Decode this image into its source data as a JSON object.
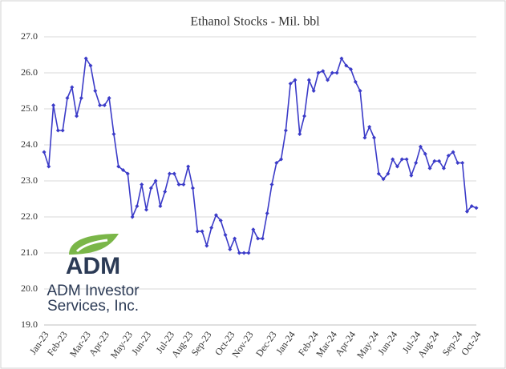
{
  "chart_data": {
    "type": "line",
    "title": "Ethanol Stocks - Mil. bbl",
    "categories": [
      "Jan-23",
      null,
      null,
      null,
      "Feb-23",
      null,
      null,
      null,
      null,
      "Mar-23",
      null,
      null,
      null,
      "Apr-23",
      null,
      null,
      null,
      null,
      "May-23",
      null,
      null,
      null,
      "Jun-23",
      null,
      null,
      null,
      null,
      "Jul-23",
      null,
      null,
      null,
      "Aug-23",
      null,
      null,
      null,
      "Sep-23",
      null,
      null,
      null,
      null,
      "Oct-23",
      null,
      null,
      null,
      "Nov-23",
      null,
      null,
      null,
      null,
      "Dec-23",
      null,
      null,
      null,
      "Jan-24",
      null,
      null,
      null,
      null,
      "Feb-24",
      null,
      null,
      null,
      "Mar-24",
      null,
      null,
      null,
      "Apr-24",
      null,
      null,
      null,
      null,
      "May-24",
      null,
      null,
      null,
      "Jun-24",
      null,
      null,
      null,
      null,
      "Jul-24",
      null,
      null,
      null,
      "Aug-24",
      null,
      null,
      null,
      null,
      "Sep-24",
      null,
      null,
      null,
      "Oct-24"
    ],
    "series": [
      {
        "name": "Ethanol Stocks",
        "color": "#3b3bc8",
        "values": [
          23.8,
          23.4,
          25.1,
          24.4,
          24.4,
          25.3,
          25.6,
          24.8,
          25.3,
          26.4,
          26.2,
          25.5,
          25.1,
          25.1,
          25.3,
          24.3,
          23.4,
          23.3,
          23.2,
          22.0,
          22.3,
          22.9,
          22.2,
          22.8,
          23.0,
          22.3,
          22.7,
          23.2,
          23.2,
          22.9,
          22.9,
          23.4,
          22.8,
          21.6,
          21.6,
          21.2,
          21.7,
          22.05,
          21.9,
          21.5,
          21.1,
          21.4,
          21.0,
          21.0,
          21.0,
          21.65,
          21.4,
          21.4,
          22.1,
          22.9,
          23.5,
          23.6,
          24.4,
          25.7,
          25.8,
          24.3,
          24.8,
          25.8,
          25.5,
          26.0,
          26.05,
          25.8,
          26.0,
          26.0,
          26.4,
          26.2,
          26.1,
          25.75,
          25.5,
          24.2,
          24.5,
          24.2,
          23.2,
          23.05,
          23.2,
          23.6,
          23.4,
          23.6,
          23.6,
          23.15,
          23.5,
          23.95,
          23.75,
          23.35,
          23.55,
          23.55,
          23.35,
          23.7,
          23.8,
          23.5,
          23.5,
          22.15,
          22.3,
          22.25
        ]
      }
    ],
    "ylim": [
      19,
      27
    ],
    "yticks": [
      {
        "value": 19,
        "label": "19.0"
      },
      {
        "value": 20,
        "label": "20.0"
      },
      {
        "value": 21,
        "label": "21.0"
      },
      {
        "value": 22,
        "label": "22.0"
      },
      {
        "value": 23,
        "label": "23.0"
      },
      {
        "value": 24,
        "label": "24.0"
      },
      {
        "value": 25,
        "label": "25.0"
      },
      {
        "value": 26,
        "label": "26.0"
      },
      {
        "value": 27,
        "label": "27.0"
      }
    ],
    "grid": true
  },
  "logo": {
    "mark": "ADM",
    "line1": "ADM Investor",
    "line2": "Services, Inc."
  }
}
